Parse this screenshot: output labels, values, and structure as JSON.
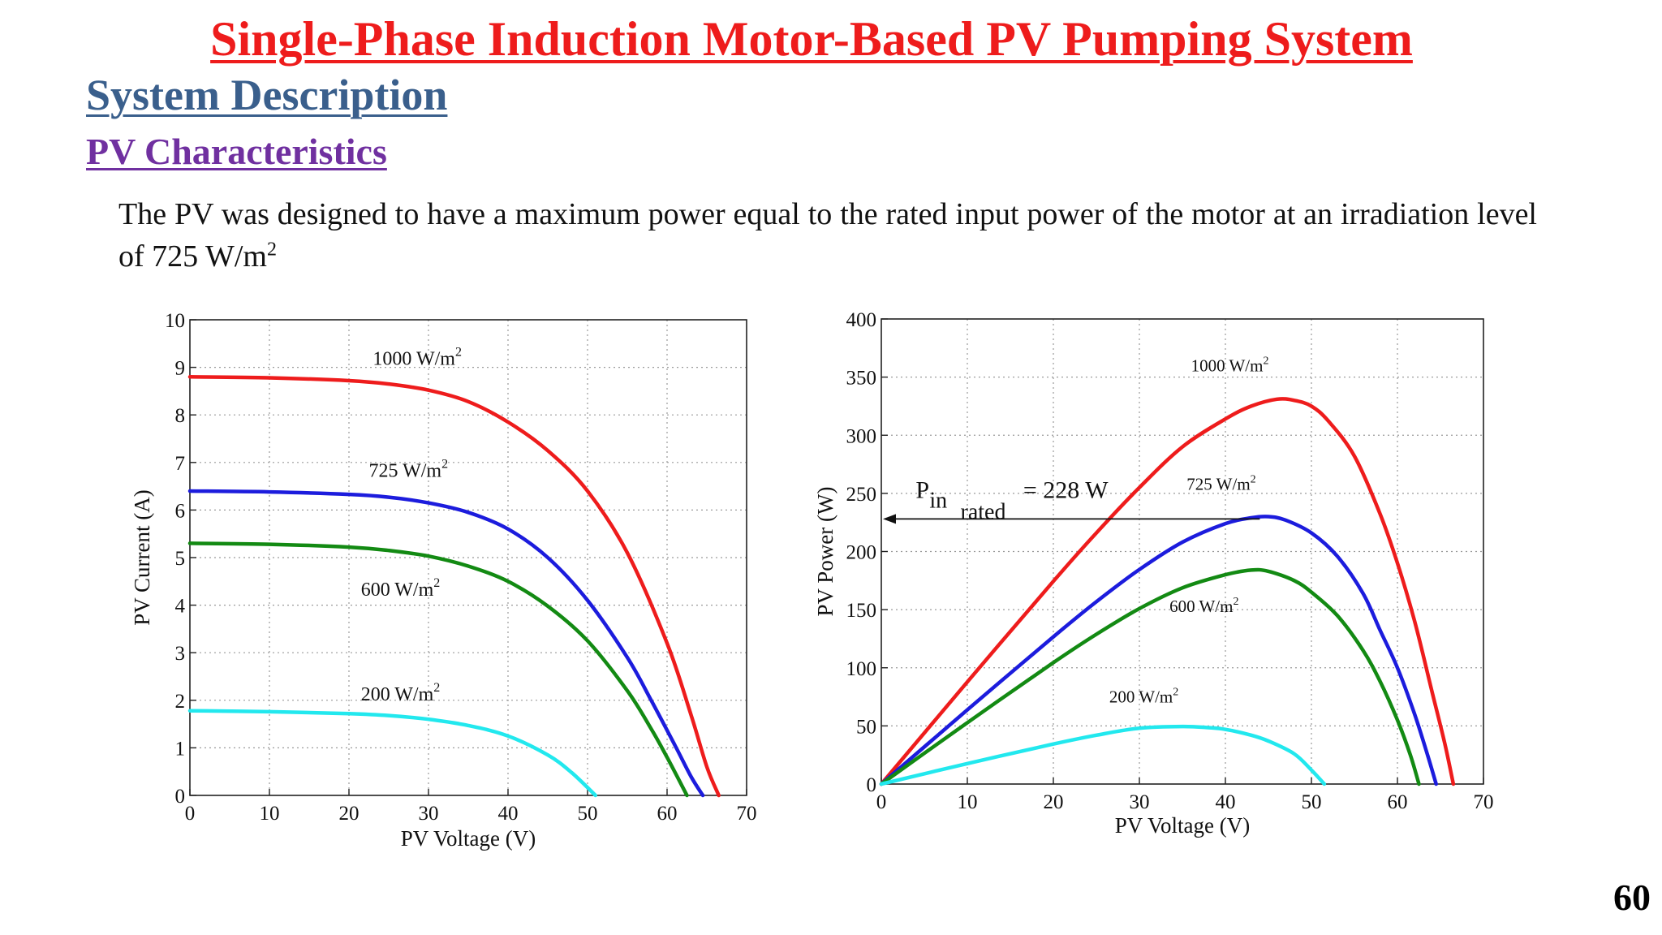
{
  "slide": {
    "title": "Single-Phase Induction Motor-Based PV Pumping System",
    "section": "System Description",
    "subsection": "PV Characteristics",
    "body_text": "The PV was designed to have a maximum power equal to the rated input power of the motor at an irradiation level of 725 W/m",
    "body_text_sup": "2",
    "page_number": "60"
  },
  "chart_data": [
    {
      "type": "line",
      "xlabel": "PV Voltage (V)",
      "ylabel": "PV Current (A)",
      "xlim": [
        0,
        70
      ],
      "ylim": [
        0,
        10
      ],
      "xticks": [
        0,
        10,
        20,
        30,
        40,
        50,
        60,
        70
      ],
      "yticks": [
        0,
        1,
        2,
        3,
        4,
        5,
        6,
        7,
        8,
        9,
        10
      ],
      "grid": true,
      "series": [
        {
          "name": "1000 W/m",
          "color": "#ee1c1c",
          "x": [
            0,
            10,
            20,
            25,
            30,
            35,
            40,
            45,
            50,
            55,
            60,
            63,
            65,
            66.5
          ],
          "y": [
            8.8,
            8.78,
            8.72,
            8.65,
            8.52,
            8.28,
            7.85,
            7.25,
            6.4,
            5.1,
            3.2,
            1.7,
            0.6,
            0
          ]
        },
        {
          "name": "725 W/m",
          "color": "#1c1cdd",
          "x": [
            0,
            10,
            20,
            25,
            30,
            35,
            40,
            45,
            50,
            55,
            58,
            61,
            63,
            64.5
          ],
          "y": [
            6.4,
            6.38,
            6.33,
            6.27,
            6.15,
            5.95,
            5.6,
            5.0,
            4.1,
            2.9,
            2.0,
            1.05,
            0.4,
            0
          ]
        },
        {
          "name": "600 W/m",
          "color": "#138a13",
          "x": [
            0,
            10,
            20,
            25,
            30,
            35,
            40,
            45,
            50,
            55,
            58,
            60,
            62.5
          ],
          "y": [
            5.3,
            5.28,
            5.22,
            5.15,
            5.03,
            4.82,
            4.5,
            3.98,
            3.25,
            2.2,
            1.4,
            0.8,
            0
          ]
        },
        {
          "name": "200 W/m",
          "color": "#22e8ee",
          "x": [
            0,
            10,
            20,
            25,
            30,
            35,
            40,
            45,
            48,
            51
          ],
          "y": [
            1.78,
            1.76,
            1.72,
            1.68,
            1.6,
            1.47,
            1.25,
            0.85,
            0.48,
            0
          ]
        }
      ],
      "labels": [
        {
          "text": "1000 W/m",
          "sup": "2",
          "x": 23,
          "y": 9.05
        },
        {
          "text": "725 W/m",
          "sup": "2",
          "x": 22.5,
          "y": 6.7
        },
        {
          "text": "600 W/m",
          "sup": "2",
          "x": 21.5,
          "y": 4.2
        },
        {
          "text": "200 W/m",
          "sup": "2",
          "x": 21.5,
          "y": 2.0
        }
      ]
    },
    {
      "type": "line",
      "xlabel": "PV Voltage (V)",
      "ylabel": "PV Power (W)",
      "xlim": [
        0,
        70
      ],
      "ylim": [
        0,
        400
      ],
      "xticks": [
        0,
        10,
        20,
        30,
        40,
        50,
        60,
        70
      ],
      "yticks": [
        0,
        50,
        100,
        150,
        200,
        250,
        300,
        350,
        400
      ],
      "grid": true,
      "series": [
        {
          "name": "1000 W/m",
          "color": "#ee1c1c",
          "x": [
            0,
            10,
            20,
            25,
            30,
            35,
            40,
            43,
            46,
            48,
            50,
            52,
            55,
            58,
            60,
            62,
            64,
            65.5,
            66.5
          ],
          "y": [
            0,
            87.8,
            174.4,
            216,
            255,
            290,
            314,
            325,
            331,
            330,
            325,
            312,
            282,
            232,
            190,
            140,
            80,
            35,
            0
          ]
        },
        {
          "name": "725 W/m",
          "color": "#1c1cdd",
          "x": [
            0,
            10,
            20,
            25,
            30,
            35,
            40,
            43,
            45,
            47,
            50,
            53,
            56,
            58,
            60,
            62,
            63.5,
            64.5
          ],
          "y": [
            0,
            63.8,
            126.6,
            156.8,
            184.5,
            208,
            224,
            229,
            230,
            227,
            216,
            196,
            164,
            132,
            100,
            60,
            25,
            0
          ]
        },
        {
          "name": "600 W/m",
          "color": "#138a13",
          "x": [
            0,
            10,
            20,
            25,
            30,
            35,
            40,
            43,
            45,
            48,
            50,
            53,
            56,
            58,
            60,
            61.5,
            62.5
          ],
          "y": [
            0,
            52.8,
            104.4,
            128.8,
            150.9,
            168.7,
            180,
            184,
            183,
            175,
            165,
            145,
            115,
            88,
            55,
            25,
            0
          ]
        },
        {
          "name": "200 W/m",
          "color": "#22e8ee",
          "x": [
            0,
            10,
            20,
            25,
            30,
            35,
            38,
            40,
            43,
            45,
            48,
            50,
            51.5
          ],
          "y": [
            0,
            17.6,
            34.4,
            42,
            48,
            49.5,
            48.5,
            47,
            42,
            37,
            26,
            12,
            0
          ]
        }
      ],
      "labels": [
        {
          "text": "1000 W/m",
          "sup": "2",
          "x": 36,
          "y": 355
        },
        {
          "text": "725 W/m",
          "sup": "2",
          "x": 35.5,
          "y": 253
        },
        {
          "text": "600 W/m",
          "sup": "2",
          "x": 33.5,
          "y": 148
        },
        {
          "text": "200 W/m",
          "sup": "2",
          "x": 26.5,
          "y": 70
        }
      ],
      "annotation": {
        "p": "P",
        "sub1": "in",
        "sub2": "rated",
        "value_text": "= 228 W",
        "arrow_y": 228,
        "arrow_from_x": 44,
        "arrow_to_x": 0
      }
    }
  ]
}
